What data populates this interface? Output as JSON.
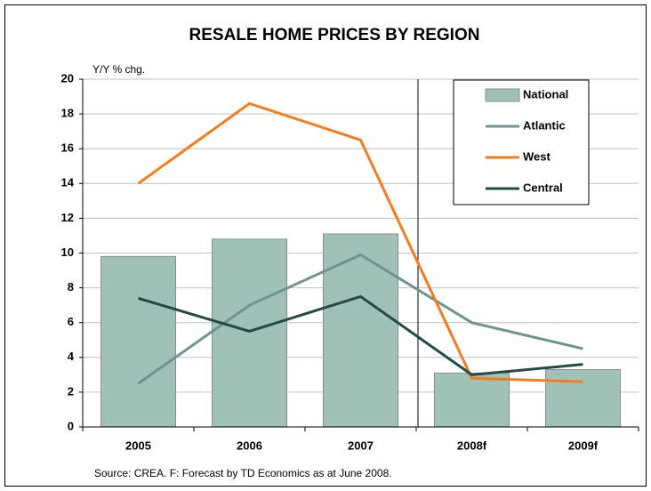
{
  "chart_data": {
    "type": "bar_line",
    "title": "RESALE HOME PRICES BY REGION",
    "y_axis_label": "Y/Y % chg.",
    "source": "Source: CREA. F: Forecast by TD Economics as at June 2008.",
    "categories": [
      "2005",
      "2006",
      "2007",
      "2008f",
      "2009f"
    ],
    "series": [
      {
        "name": "National",
        "kind": "bar",
        "color": "#9fc1b8",
        "values": [
          9.8,
          10.8,
          11.1,
          3.1,
          3.3
        ]
      },
      {
        "name": "Atlantic",
        "kind": "line",
        "color": "#6f9490",
        "values": [
          2.5,
          7.0,
          9.9,
          6.0,
          4.5
        ]
      },
      {
        "name": "West",
        "kind": "line",
        "color": "#f47c20",
        "values": [
          14.0,
          18.6,
          16.5,
          2.8,
          2.6
        ]
      },
      {
        "name": "Central",
        "kind": "line",
        "color": "#244a45",
        "values": [
          7.4,
          5.5,
          7.5,
          3.0,
          3.6
        ]
      }
    ],
    "ylim": [
      0,
      20
    ],
    "yticks": [
      0,
      2,
      4,
      6,
      8,
      10,
      12,
      14,
      16,
      18,
      20
    ],
    "grid": true,
    "legend": "upper right"
  }
}
